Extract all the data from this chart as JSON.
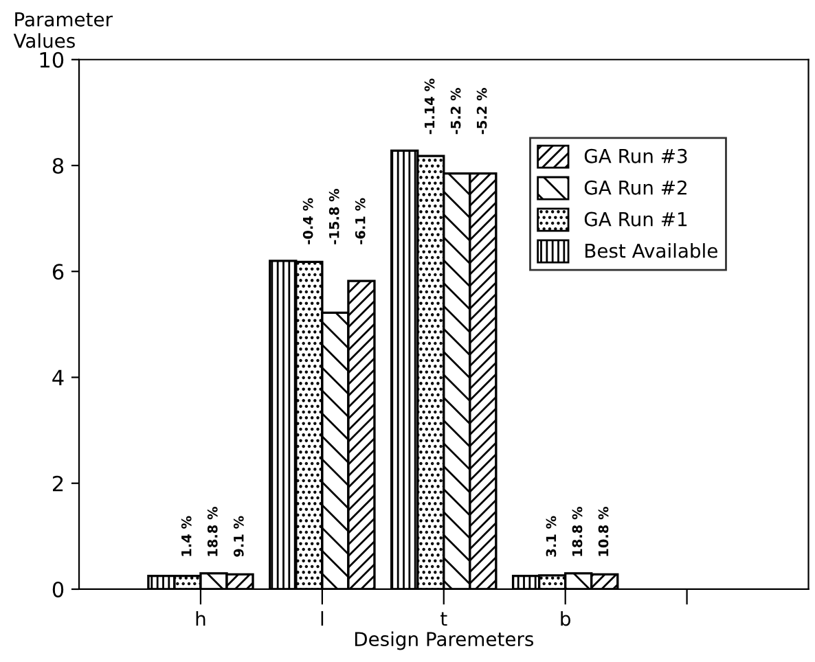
{
  "chart_data": {
    "type": "bar",
    "ylabel": "Parameter\nValues",
    "xlabel": "Design Paremeters",
    "categories": [
      "h",
      "l",
      "t",
      "b",
      null
    ],
    "series": [
      {
        "name": "Best Available",
        "color": "#000000",
        "values": [
          0.25,
          6.2,
          8.28,
          0.25,
          null
        ]
      },
      {
        "name": "GA Run #1",
        "color": "#000000",
        "values": [
          0.25,
          6.18,
          8.18,
          0.26,
          null
        ]
      },
      {
        "name": "GA Run #2",
        "color": "#000000",
        "values": [
          0.3,
          5.22,
          7.85,
          0.3,
          null
        ]
      },
      {
        "name": "GA Run #3",
        "color": "#000000",
        "values": [
          0.28,
          5.82,
          7.85,
          0.28,
          null
        ]
      }
    ],
    "annotations": [
      "1.4 %",
      "18.8 %",
      "9.1 %",
      "-0.4 %",
      "-15.8 %",
      "-6.1 %",
      "-1.14 %",
      "-5.2 %",
      "-5.2 %",
      "3.1 %",
      "18.8 %",
      "10.8 %"
    ],
    "ylim": [
      0,
      10
    ],
    "yticks": [
      0,
      2,
      4,
      6,
      8,
      10
    ],
    "grid": false,
    "legend": "top right"
  }
}
